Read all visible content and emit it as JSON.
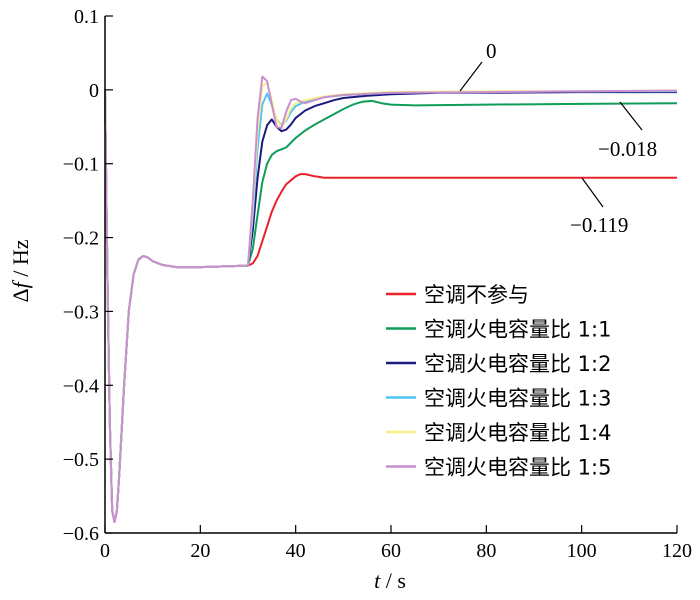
{
  "chart_data": {
    "type": "line",
    "xlabel": "t / s",
    "ylabel": "Δf / Hz",
    "xlim": [
      0,
      120
    ],
    "ylim": [
      -0.6,
      0.1
    ],
    "xticks": [
      0,
      20,
      40,
      60,
      80,
      100,
      120
    ],
    "xtick_labels": [
      "0",
      "20",
      "40",
      "60",
      "80",
      "100",
      "120"
    ],
    "yticks": [
      0.1,
      0,
      -0.1,
      -0.2,
      -0.3,
      -0.4,
      -0.5,
      -0.6
    ],
    "ytick_labels": [
      "0.1",
      "0",
      "−0.1",
      "−0.2",
      "−0.3",
      "−0.4",
      "−0.5",
      "−0.6"
    ],
    "grid": false,
    "legend_position": "bottom-right",
    "series": [
      {
        "name": "空调不参与",
        "color": "#e8212b",
        "points": [
          [
            0,
            0
          ],
          [
            0.5,
            -0.25
          ],
          [
            1,
            -0.45
          ],
          [
            1.5,
            -0.57
          ],
          [
            2,
            -0.585
          ],
          [
            2.5,
            -0.57
          ],
          [
            3,
            -0.52
          ],
          [
            4,
            -0.4
          ],
          [
            5,
            -0.3
          ],
          [
            6,
            -0.25
          ],
          [
            7,
            -0.23
          ],
          [
            8,
            -0.225
          ],
          [
            9,
            -0.227
          ],
          [
            10,
            -0.232
          ],
          [
            12,
            -0.237
          ],
          [
            15,
            -0.24
          ],
          [
            20,
            -0.24
          ],
          [
            25,
            -0.239
          ],
          [
            30,
            -0.238
          ],
          [
            31,
            -0.235
          ],
          [
            32,
            -0.225
          ],
          [
            33,
            -0.205
          ],
          [
            34,
            -0.185
          ],
          [
            35,
            -0.165
          ],
          [
            36,
            -0.15
          ],
          [
            37,
            -0.138
          ],
          [
            38,
            -0.128
          ],
          [
            40,
            -0.117
          ],
          [
            41,
            -0.114
          ],
          [
            42,
            -0.114
          ],
          [
            44,
            -0.117
          ],
          [
            46,
            -0.119
          ],
          [
            60,
            -0.119
          ],
          [
            80,
            -0.119
          ],
          [
            100,
            -0.119
          ],
          [
            120,
            -0.119
          ]
        ]
      },
      {
        "name": "空调火电容量比 1:1",
        "color": "#0f9d58",
        "points": [
          [
            0,
            0
          ],
          [
            0.5,
            -0.25
          ],
          [
            1,
            -0.45
          ],
          [
            1.5,
            -0.57
          ],
          [
            2,
            -0.585
          ],
          [
            2.5,
            -0.57
          ],
          [
            3,
            -0.52
          ],
          [
            4,
            -0.4
          ],
          [
            5,
            -0.3
          ],
          [
            6,
            -0.25
          ],
          [
            7,
            -0.23
          ],
          [
            8,
            -0.225
          ],
          [
            9,
            -0.227
          ],
          [
            10,
            -0.232
          ],
          [
            12,
            -0.237
          ],
          [
            15,
            -0.24
          ],
          [
            20,
            -0.24
          ],
          [
            25,
            -0.239
          ],
          [
            30,
            -0.238
          ],
          [
            31,
            -0.215
          ],
          [
            32,
            -0.17
          ],
          [
            33,
            -0.125
          ],
          [
            34,
            -0.1
          ],
          [
            35,
            -0.088
          ],
          [
            36,
            -0.083
          ],
          [
            38,
            -0.078
          ],
          [
            40,
            -0.065
          ],
          [
            42,
            -0.055
          ],
          [
            44,
            -0.047
          ],
          [
            46,
            -0.04
          ],
          [
            48,
            -0.033
          ],
          [
            50,
            -0.026
          ],
          [
            52,
            -0.02
          ],
          [
            54,
            -0.016
          ],
          [
            56,
            -0.015
          ],
          [
            58,
            -0.018
          ],
          [
            60,
            -0.02
          ],
          [
            65,
            -0.021
          ],
          [
            80,
            -0.02
          ],
          [
            100,
            -0.019
          ],
          [
            120,
            -0.018
          ]
        ]
      },
      {
        "name": "空调火电容量比 1:2",
        "color": "#1a1a80",
        "points": [
          [
            0,
            0
          ],
          [
            0.5,
            -0.25
          ],
          [
            1,
            -0.45
          ],
          [
            1.5,
            -0.57
          ],
          [
            2,
            -0.585
          ],
          [
            2.5,
            -0.57
          ],
          [
            3,
            -0.52
          ],
          [
            4,
            -0.4
          ],
          [
            5,
            -0.3
          ],
          [
            6,
            -0.25
          ],
          [
            7,
            -0.23
          ],
          [
            8,
            -0.225
          ],
          [
            9,
            -0.227
          ],
          [
            10,
            -0.232
          ],
          [
            12,
            -0.237
          ],
          [
            15,
            -0.24
          ],
          [
            20,
            -0.24
          ],
          [
            25,
            -0.239
          ],
          [
            30,
            -0.238
          ],
          [
            31,
            -0.19
          ],
          [
            32,
            -0.12
          ],
          [
            33,
            -0.07
          ],
          [
            34,
            -0.048
          ],
          [
            35,
            -0.04
          ],
          [
            36,
            -0.05
          ],
          [
            37,
            -0.056
          ],
          [
            38,
            -0.054
          ],
          [
            39,
            -0.047
          ],
          [
            40,
            -0.038
          ],
          [
            42,
            -0.028
          ],
          [
            44,
            -0.022
          ],
          [
            46,
            -0.018
          ],
          [
            48,
            -0.014
          ],
          [
            50,
            -0.011
          ],
          [
            55,
            -0.008
          ],
          [
            60,
            -0.006
          ],
          [
            70,
            -0.004
          ],
          [
            80,
            -0.004
          ],
          [
            100,
            -0.003
          ],
          [
            120,
            -0.003
          ]
        ]
      },
      {
        "name": "空调火电容量比 1:3",
        "color": "#4fc3f7",
        "points": [
          [
            0,
            0
          ],
          [
            0.5,
            -0.25
          ],
          [
            1,
            -0.45
          ],
          [
            1.5,
            -0.57
          ],
          [
            2,
            -0.585
          ],
          [
            2.5,
            -0.57
          ],
          [
            3,
            -0.52
          ],
          [
            4,
            -0.4
          ],
          [
            5,
            -0.3
          ],
          [
            6,
            -0.25
          ],
          [
            7,
            -0.23
          ],
          [
            8,
            -0.225
          ],
          [
            9,
            -0.227
          ],
          [
            10,
            -0.232
          ],
          [
            12,
            -0.237
          ],
          [
            15,
            -0.24
          ],
          [
            20,
            -0.24
          ],
          [
            25,
            -0.239
          ],
          [
            30,
            -0.238
          ],
          [
            31,
            -0.17
          ],
          [
            32,
            -0.08
          ],
          [
            33,
            -0.02
          ],
          [
            34,
            -0.005
          ],
          [
            35,
            -0.02
          ],
          [
            36,
            -0.04
          ],
          [
            37,
            -0.048
          ],
          [
            38,
            -0.042
          ],
          [
            39,
            -0.03
          ],
          [
            40,
            -0.022
          ],
          [
            42,
            -0.016
          ],
          [
            44,
            -0.012
          ],
          [
            46,
            -0.01
          ],
          [
            50,
            -0.007
          ],
          [
            60,
            -0.004
          ],
          [
            80,
            -0.003
          ],
          [
            100,
            -0.002
          ],
          [
            120,
            -0.002
          ]
        ]
      },
      {
        "name": "空调火电容量比 1:4",
        "color": "#f5f08a",
        "points": [
          [
            0,
            0
          ],
          [
            0.5,
            -0.25
          ],
          [
            1,
            -0.45
          ],
          [
            1.5,
            -0.57
          ],
          [
            2,
            -0.585
          ],
          [
            2.5,
            -0.57
          ],
          [
            3,
            -0.52
          ],
          [
            4,
            -0.4
          ],
          [
            5,
            -0.3
          ],
          [
            6,
            -0.25
          ],
          [
            7,
            -0.23
          ],
          [
            8,
            -0.225
          ],
          [
            9,
            -0.227
          ],
          [
            10,
            -0.232
          ],
          [
            12,
            -0.237
          ],
          [
            15,
            -0.24
          ],
          [
            20,
            -0.24
          ],
          [
            25,
            -0.239
          ],
          [
            30,
            -0.238
          ],
          [
            31,
            -0.16
          ],
          [
            32,
            -0.06
          ],
          [
            33,
            0.005
          ],
          [
            34,
            0.01
          ],
          [
            35,
            -0.015
          ],
          [
            36,
            -0.04
          ],
          [
            37,
            -0.05
          ],
          [
            38,
            -0.04
          ],
          [
            39,
            -0.025
          ],
          [
            40,
            -0.018
          ],
          [
            42,
            -0.014
          ],
          [
            44,
            -0.011
          ],
          [
            46,
            -0.009
          ],
          [
            50,
            -0.006
          ],
          [
            60,
            -0.003
          ],
          [
            80,
            -0.002
          ],
          [
            100,
            -0.002
          ],
          [
            120,
            -0.001
          ]
        ]
      },
      {
        "name": "空调火电容量比 1:5",
        "color": "#c98fd0",
        "points": [
          [
            0,
            0
          ],
          [
            0.5,
            -0.25
          ],
          [
            1,
            -0.45
          ],
          [
            1.5,
            -0.57
          ],
          [
            2,
            -0.585
          ],
          [
            2.5,
            -0.57
          ],
          [
            3,
            -0.52
          ],
          [
            4,
            -0.4
          ],
          [
            5,
            -0.3
          ],
          [
            6,
            -0.25
          ],
          [
            7,
            -0.23
          ],
          [
            8,
            -0.225
          ],
          [
            9,
            -0.227
          ],
          [
            10,
            -0.232
          ],
          [
            12,
            -0.237
          ],
          [
            15,
            -0.24
          ],
          [
            20,
            -0.24
          ],
          [
            25,
            -0.239
          ],
          [
            30,
            -0.238
          ],
          [
            31,
            -0.15
          ],
          [
            32,
            -0.04
          ],
          [
            33,
            0.018
          ],
          [
            34,
            0.012
          ],
          [
            35,
            -0.02
          ],
          [
            36,
            -0.05
          ],
          [
            37,
            -0.052
          ],
          [
            38,
            -0.03
          ],
          [
            39,
            -0.014
          ],
          [
            40,
            -0.012
          ],
          [
            41,
            -0.016
          ],
          [
            42,
            -0.018
          ],
          [
            44,
            -0.014
          ],
          [
            46,
            -0.01
          ],
          [
            50,
            -0.007
          ],
          [
            60,
            -0.004
          ],
          [
            80,
            -0.003
          ],
          [
            100,
            -0.002
          ],
          [
            120,
            -0.001
          ]
        ]
      }
    ],
    "annotations": [
      {
        "text": "0",
        "x": 76,
        "y": 0.0
      },
      {
        "text": "−0.018",
        "x": 108,
        "y": -0.018
      },
      {
        "text": "−0.119",
        "x": 100,
        "y": -0.119
      }
    ]
  }
}
